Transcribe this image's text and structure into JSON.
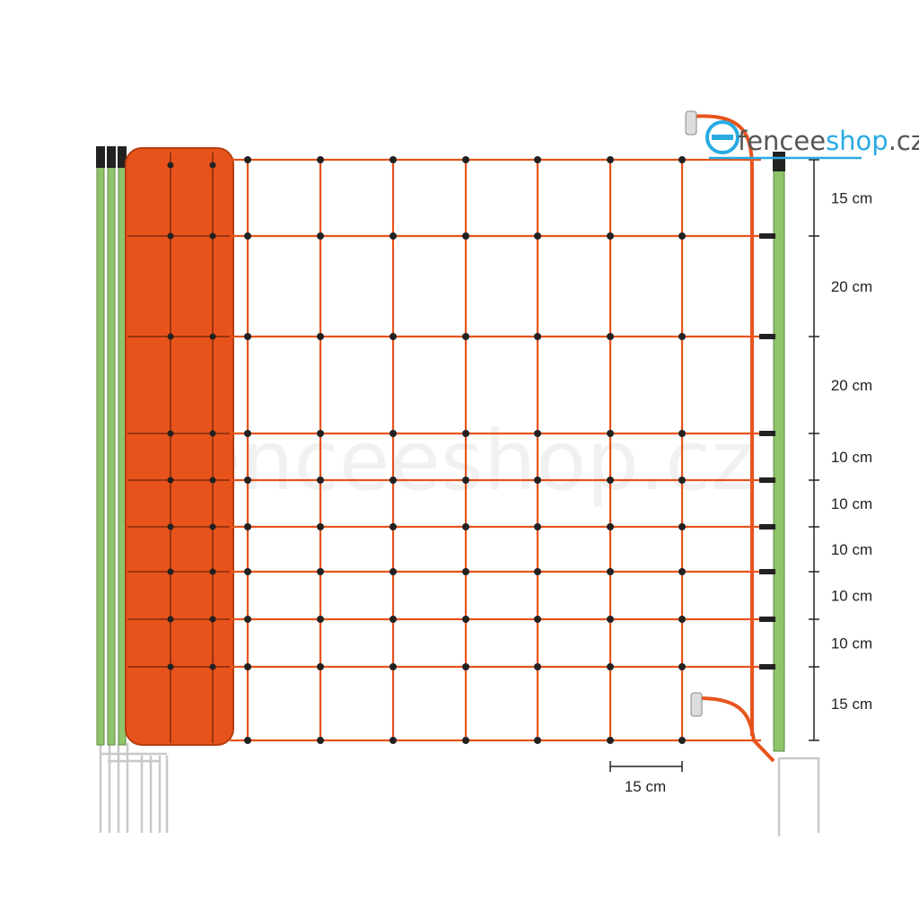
{
  "logo": {
    "part1": "fencee",
    "part2": "shop",
    "part3": ".cz"
  },
  "watermark": "fenceeshop.cz",
  "row_spacings": [
    "15 cm",
    "20 cm",
    "20 cm",
    "10 cm",
    "10 cm",
    "10 cm",
    "10 cm",
    "10 cm",
    "15 cm"
  ],
  "mesh_width_label": "15 cm",
  "colors": {
    "net": "#e8531c",
    "roll": "#e8531c",
    "post": "#8fc46b",
    "post_cap": "#222222",
    "knot": "#222222",
    "logo_blue": "#29abe2",
    "logo_gray": "#555555",
    "spike": "#c8c8c8"
  }
}
